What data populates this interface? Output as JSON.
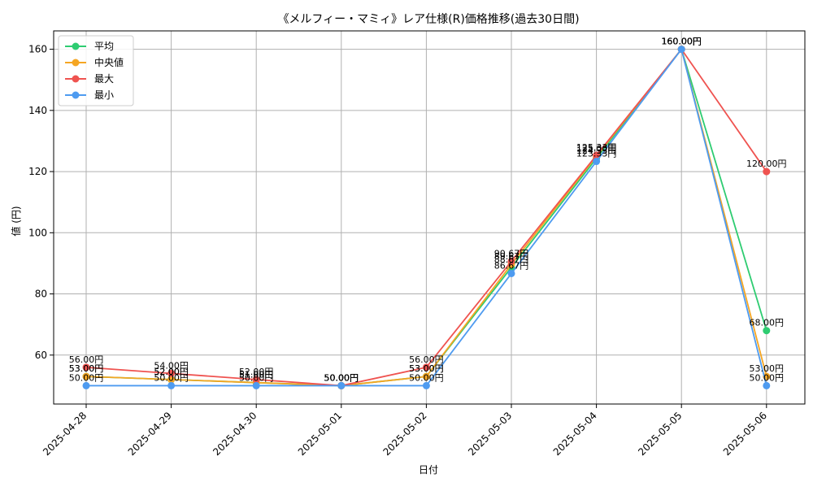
{
  "chart_data": {
    "type": "line",
    "title": "《メルフィー・マミィ》レア仕様(R)価格推移(過去30日間)",
    "xlabel": "日付",
    "ylabel": "値 (円)",
    "categories": [
      "2025-04-28",
      "2025-04-29",
      "2025-04-30",
      "2025-05-01",
      "2025-05-02",
      "2025-05-03",
      "2025-05-04",
      "2025-05-05",
      "2025-05-06"
    ],
    "ylim": [
      44,
      166
    ],
    "yticks": [
      60,
      80,
      100,
      120,
      140,
      160
    ],
    "grid": true,
    "legend_position": "top-left",
    "value_suffix": "円",
    "series": [
      {
        "name": "平均",
        "color": "#2ecc71",
        "values": [
          53.0,
          52.0,
          51.0,
          50.0,
          53.0,
          88.67,
          124.33,
          160.0,
          68.0
        ]
      },
      {
        "name": "中央値",
        "color": "#f5a623",
        "values": [
          53.0,
          52.0,
          51.0,
          50.0,
          53.0,
          89.67,
          125.0,
          160.0,
          53.0
        ]
      },
      {
        "name": "最大",
        "color": "#ef5350",
        "values": [
          56.0,
          54.0,
          52.0,
          50.0,
          56.0,
          90.67,
          125.33,
          160.0,
          120.0
        ]
      },
      {
        "name": "最小",
        "color": "#4e9bf0",
        "values": [
          50.0,
          50.0,
          50.0,
          50.0,
          50.0,
          86.67,
          123.33,
          160.0,
          50.0
        ]
      }
    ]
  }
}
